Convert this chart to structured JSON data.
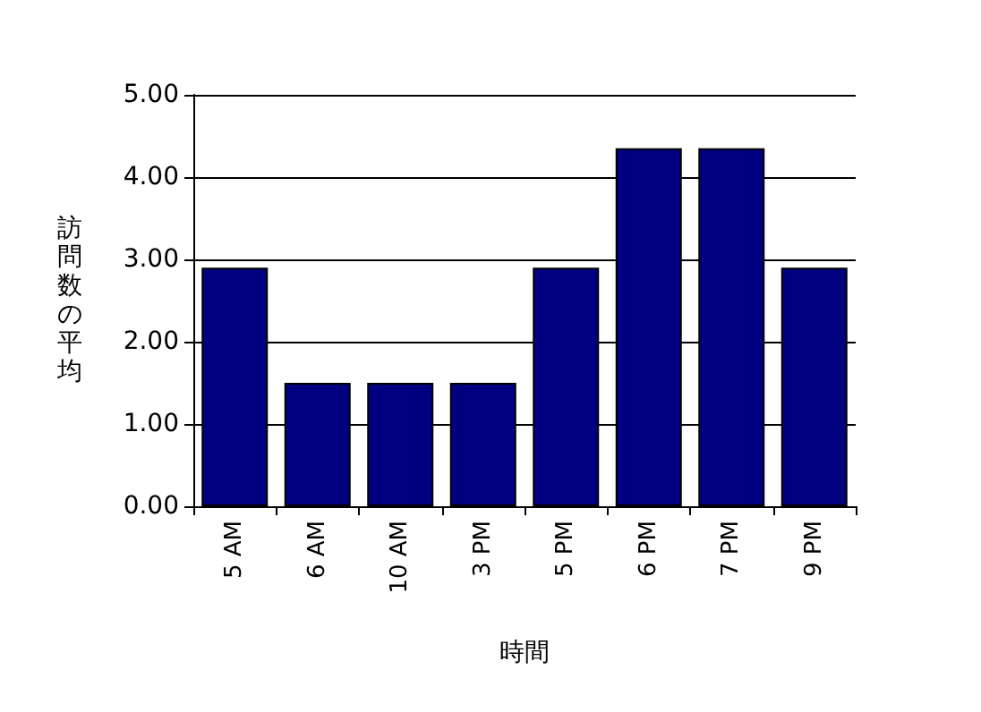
{
  "chart_data": {
    "type": "bar",
    "xlabel": "時間",
    "ylabel": "訪問数の平均",
    "categories": [
      "5 AM",
      "6 AM",
      "10 AM",
      "3 PM",
      "5 PM",
      "6 PM",
      "7 PM",
      "9 PM"
    ],
    "values": [
      2.9,
      1.5,
      1.5,
      1.5,
      2.9,
      4.35,
      4.35,
      2.9
    ],
    "color": "#000080",
    "ylim": [
      0,
      5
    ],
    "yticks": [
      {
        "value": 0,
        "label": "0.00"
      },
      {
        "value": 1,
        "label": "1.00"
      },
      {
        "value": 2,
        "label": "2.00"
      },
      {
        "value": 3,
        "label": "3.00"
      },
      {
        "value": 4,
        "label": "4.00"
      },
      {
        "value": 5,
        "label": "5.00"
      }
    ],
    "grid": "y"
  }
}
